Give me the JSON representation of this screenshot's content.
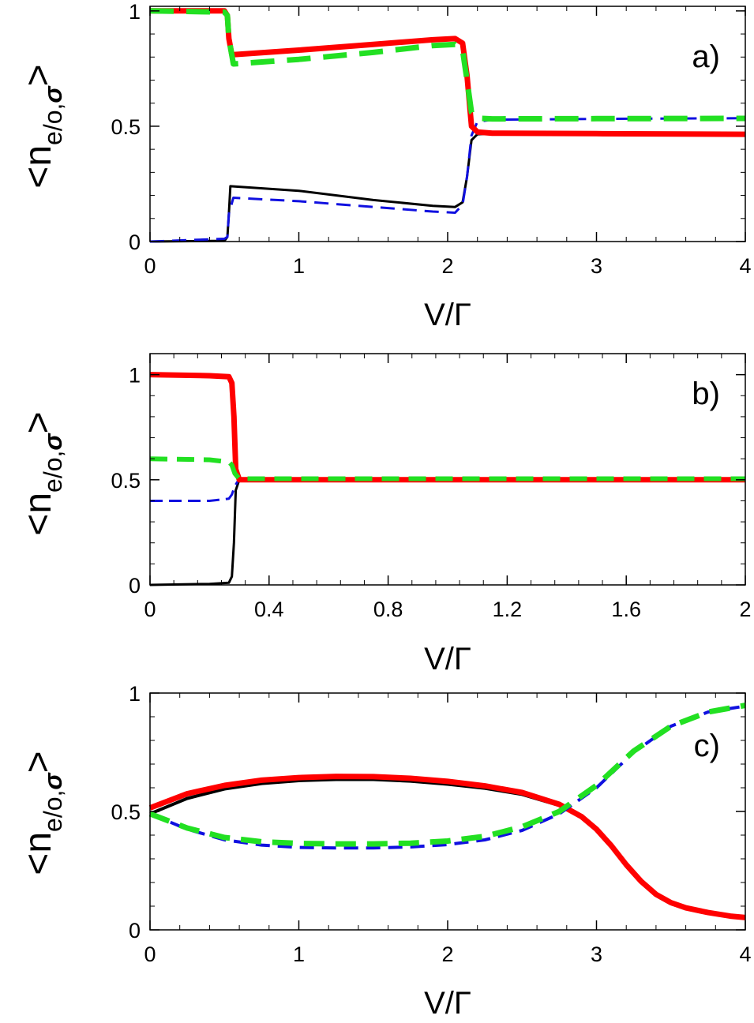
{
  "chart_data": [
    {
      "type": "line",
      "panel_label": "a)",
      "xlabel": "V/Γ",
      "ylabel": {
        "prefix": "<n",
        "subscript": "e/o,",
        "sigma": "σ",
        "suffix": ">"
      },
      "xlim": [
        0,
        4
      ],
      "ylim": [
        0,
        1.02
      ],
      "xticks": [
        0,
        1,
        2,
        3,
        4
      ],
      "xtick_labels": [
        "0",
        "1",
        "2",
        "3",
        "4"
      ],
      "yticks": [
        0,
        0.5,
        1
      ],
      "ytick_labels": [
        "0",
        "0.5",
        "1"
      ],
      "series": [
        {
          "name": "black solid",
          "color": "#000000",
          "dash": "",
          "width": 3,
          "x": [
            0,
            0.5,
            0.52,
            0.53,
            0.54,
            1.0,
            1.5,
            1.9,
            2.05,
            2.1,
            2.13,
            2.16,
            2.2,
            2.3,
            3.0,
            4.0
          ],
          "y": [
            0,
            0.003,
            0.02,
            0.12,
            0.24,
            0.22,
            0.18,
            0.155,
            0.15,
            0.17,
            0.28,
            0.44,
            0.465,
            0.468,
            0.467,
            0.465
          ]
        },
        {
          "name": "blue dashed",
          "color": "#1010e0",
          "dash": "18 10",
          "width": 3,
          "x": [
            0,
            0.5,
            0.52,
            0.53,
            0.56,
            1.0,
            1.5,
            1.9,
            2.05,
            2.1,
            2.13,
            2.16,
            2.2,
            2.3,
            3.0,
            4.0
          ],
          "y": [
            0,
            0.012,
            0.02,
            0.12,
            0.19,
            0.175,
            0.15,
            0.13,
            0.125,
            0.16,
            0.28,
            0.46,
            0.52,
            0.528,
            0.532,
            0.535
          ]
        },
        {
          "name": "red thick",
          "color": "#ff0000",
          "dash": "",
          "width": 7,
          "x": [
            0,
            0.5,
            0.52,
            0.53,
            0.55,
            1.0,
            1.5,
            1.9,
            2.05,
            2.1,
            2.13,
            2.16,
            2.2,
            2.3,
            3.0,
            4.0
          ],
          "y": [
            1.0,
            1.0,
            0.98,
            0.88,
            0.81,
            0.83,
            0.855,
            0.875,
            0.88,
            0.86,
            0.72,
            0.5,
            0.475,
            0.47,
            0.468,
            0.465
          ]
        },
        {
          "name": "green dashed",
          "color": "#22e022",
          "dash": "30 16",
          "width": 7,
          "x": [
            0,
            0.5,
            0.52,
            0.53,
            0.56,
            1.0,
            1.5,
            1.9,
            2.05,
            2.1,
            2.13,
            2.16,
            2.2,
            2.3,
            3.0,
            4.0
          ],
          "y": [
            1.0,
            0.995,
            0.98,
            0.88,
            0.77,
            0.79,
            0.82,
            0.85,
            0.855,
            0.83,
            0.7,
            0.56,
            0.535,
            0.532,
            0.533,
            0.534
          ]
        }
      ]
    },
    {
      "type": "line",
      "panel_label": "b)",
      "xlabel": "V/Γ",
      "ylabel": {
        "prefix": "<n",
        "subscript": "e/o,",
        "sigma": "σ",
        "suffix": ">"
      },
      "xlim": [
        0,
        2
      ],
      "ylim": [
        0,
        1.1
      ],
      "xticks": [
        0,
        0.4,
        0.8,
        1.2,
        1.6,
        2.0
      ],
      "xtick_labels": [
        "0",
        "0.4",
        "0.8",
        "1.2",
        "1.6",
        "2"
      ],
      "yticks": [
        0,
        0.5,
        1
      ],
      "ytick_labels": [
        "0",
        "0.5",
        "1"
      ],
      "series": [
        {
          "name": "black solid",
          "color": "#000000",
          "dash": "",
          "width": 3,
          "x": [
            0,
            0.2,
            0.265,
            0.275,
            0.282,
            0.288,
            0.3,
            1.0,
            2.0
          ],
          "y": [
            0,
            0.005,
            0.01,
            0.04,
            0.2,
            0.45,
            0.5,
            0.5,
            0.5
          ]
        },
        {
          "name": "blue dashed",
          "color": "#1010e0",
          "dash": "16 8",
          "width": 3,
          "x": [
            0,
            0.2,
            0.265,
            0.275,
            0.285,
            0.3,
            1.0,
            2.0
          ],
          "y": [
            0.4,
            0.4,
            0.41,
            0.43,
            0.47,
            0.505,
            0.505,
            0.505
          ]
        },
        {
          "name": "red thick",
          "color": "#ff0000",
          "dash": "",
          "width": 7,
          "x": [
            0,
            0.2,
            0.265,
            0.275,
            0.282,
            0.288,
            0.3,
            1.0,
            2.0
          ],
          "y": [
            1.0,
            0.995,
            0.99,
            0.96,
            0.8,
            0.55,
            0.5,
            0.5,
            0.5
          ]
        },
        {
          "name": "green dashed",
          "color": "#22e022",
          "dash": "22 12",
          "width": 6,
          "x": [
            0,
            0.2,
            0.265,
            0.275,
            0.285,
            0.3,
            1.0,
            2.0
          ],
          "y": [
            0.6,
            0.595,
            0.585,
            0.57,
            0.53,
            0.505,
            0.505,
            0.505
          ]
        }
      ]
    },
    {
      "type": "line",
      "panel_label": "c)",
      "xlabel": "V/Γ",
      "ylabel": {
        "prefix": "<n",
        "subscript": "e/o,",
        "sigma": "σ",
        "suffix": ">"
      },
      "xlim": [
        0,
        4
      ],
      "ylim": [
        0,
        1
      ],
      "xticks": [
        0,
        1,
        2,
        3,
        4
      ],
      "xtick_labels": [
        "0",
        "1",
        "2",
        "3",
        "4"
      ],
      "yticks": [
        0,
        0.5,
        1
      ],
      "ytick_labels": [
        "0",
        "0.5",
        "1"
      ],
      "series": [
        {
          "name": "black solid",
          "color": "#000000",
          "dash": "",
          "width": 4,
          "x": [
            0,
            0.25,
            0.5,
            0.75,
            1.0,
            1.25,
            1.5,
            1.75,
            2.0,
            2.25,
            2.5,
            2.75,
            2.9,
            3.0,
            3.1,
            3.2,
            3.3,
            3.4,
            3.5,
            3.6,
            3.75,
            3.9,
            4.0
          ],
          "y": [
            0.49,
            0.555,
            0.595,
            0.618,
            0.63,
            0.635,
            0.635,
            0.628,
            0.615,
            0.598,
            0.572,
            0.525,
            0.475,
            0.42,
            0.35,
            0.27,
            0.2,
            0.145,
            0.11,
            0.09,
            0.07,
            0.055,
            0.05
          ]
        },
        {
          "name": "red thick",
          "color": "#ff0000",
          "dash": "",
          "width": 7,
          "x": [
            0,
            0.25,
            0.5,
            0.75,
            1.0,
            1.25,
            1.5,
            1.75,
            2.0,
            2.25,
            2.5,
            2.75,
            2.9,
            3.0,
            3.1,
            3.2,
            3.3,
            3.4,
            3.5,
            3.6,
            3.75,
            3.9,
            4.0
          ],
          "y": [
            0.515,
            0.575,
            0.61,
            0.632,
            0.643,
            0.648,
            0.647,
            0.64,
            0.627,
            0.608,
            0.58,
            0.53,
            0.478,
            0.425,
            0.355,
            0.275,
            0.205,
            0.15,
            0.115,
            0.093,
            0.073,
            0.058,
            0.052
          ]
        },
        {
          "name": "blue dashed",
          "color": "#1010e0",
          "dash": "18 10",
          "width": 4,
          "x": [
            0,
            0.25,
            0.5,
            0.75,
            1.0,
            1.25,
            1.5,
            1.75,
            2.0,
            2.25,
            2.5,
            2.75,
            3.0,
            3.25,
            3.5,
            3.75,
            4.0
          ],
          "y": [
            0.49,
            0.425,
            0.38,
            0.358,
            0.348,
            0.346,
            0.346,
            0.35,
            0.36,
            0.38,
            0.42,
            0.49,
            0.6,
            0.75,
            0.86,
            0.92,
            0.945
          ]
        },
        {
          "name": "green dashed",
          "color": "#22e022",
          "dash": "26 14",
          "width": 7,
          "x": [
            0,
            0.25,
            0.5,
            0.75,
            1.0,
            1.25,
            1.5,
            1.75,
            2.0,
            2.25,
            2.5,
            2.75,
            3.0,
            3.25,
            3.5,
            3.75,
            4.0
          ],
          "y": [
            0.49,
            0.43,
            0.39,
            0.372,
            0.365,
            0.363,
            0.363,
            0.366,
            0.375,
            0.395,
            0.435,
            0.5,
            0.61,
            0.755,
            0.86,
            0.92,
            0.948
          ]
        }
      ]
    }
  ]
}
